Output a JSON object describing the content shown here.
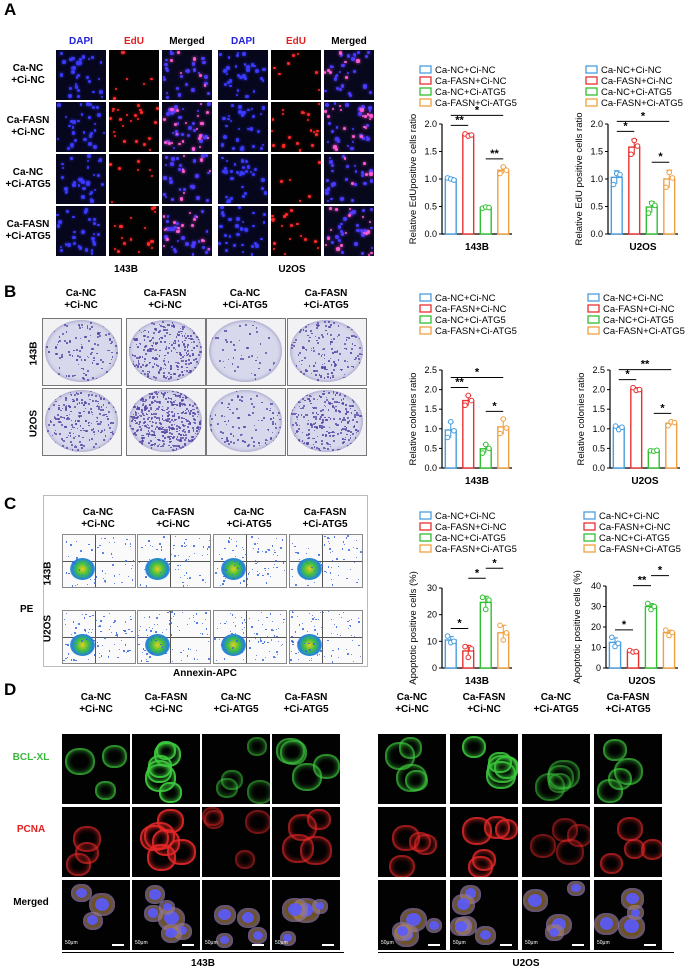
{
  "panels": {
    "A": {
      "letter": "A",
      "stain_headers": [
        "DAPI",
        "EdU",
        "Merged",
        "DAPI",
        "EdU",
        "Merged"
      ],
      "stain_colors": [
        "#2222dd",
        "#e02020",
        "#000000",
        "#2222dd",
        "#e02020",
        "#000000"
      ],
      "rows": [
        "Ca-NC\n+Ci-NC",
        "Ca-FASN\n+Ci-NC",
        "Ca-NC\n+Ci-ATG5",
        "Ca-FASN\n+Ci-ATG5"
      ],
      "cell_lines": [
        "143B",
        "U2OS"
      ]
    },
    "B": {
      "letter": "B",
      "columns": [
        "Ca-NC\n+Ci-NC",
        "Ca-FASN\n+Ci-NC",
        "Ca-NC\n+Ci-ATG5",
        "Ca-FASN\n+Ci-ATG5"
      ],
      "rows": [
        "143B",
        "U2OS"
      ]
    },
    "C": {
      "letter": "C",
      "columns": [
        "Ca-NC\n+Ci-NC",
        "Ca-FASN\n+Ci-NC",
        "Ca-NC\n+Ci-ATG5",
        "Ca-FASN\n+Ci-ATG5"
      ],
      "rows": [
        "143B",
        "U2OS"
      ],
      "y_axis": "PE",
      "x_axis": "Annexin-APC"
    },
    "D": {
      "letter": "D",
      "columns": [
        "Ca-NC\n+Ci-NC",
        "Ca-FASN\n+Ci-NC",
        "Ca-NC\n+Ci-ATG5",
        "Ca-FASN\n+Ci-ATG5"
      ],
      "rows": [
        "BCL-XL",
        "PCNA",
        "Merged"
      ],
      "row_colors": [
        "#3cb83c",
        "#e02020",
        "#000000"
      ],
      "cell_lines": [
        "143B",
        "U2OS"
      ],
      "scale_label": "50μm"
    }
  },
  "colors": {
    "series": [
      "#4a9ee0",
      "#e83030",
      "#30c030",
      "#f0a040"
    ]
  },
  "chart_data": [
    {
      "type": "bar",
      "id": "A1",
      "legend": [
        "Ca-NC+Ci-NC",
        "Ca-FASN+Ci-NC",
        "Ca-NC+Ci-ATG5",
        "Ca-FASN+Ci-ATG5"
      ],
      "categories": [
        "Ca-NC+Ci-NC",
        "Ca-FASN+Ci-NC",
        "Ca-NC+Ci-ATG5",
        "Ca-FASN+Ci-ATG5"
      ],
      "values": [
        1.0,
        1.8,
        0.48,
        1.16
      ],
      "points": [
        [
          1.02,
          1.0,
          0.98
        ],
        [
          1.82,
          1.78,
          1.8
        ],
        [
          0.47,
          0.49,
          0.48
        ],
        [
          1.1,
          1.22,
          1.16
        ]
      ],
      "errors": [
        0.03,
        0.03,
        0.02,
        0.06
      ],
      "ylabel": "Relative EdUpositive cells ratio",
      "xlabel": "143B",
      "ylim": [
        0,
        2.0
      ],
      "yticks": [
        "0.0",
        "0.5",
        "1.0",
        "1.5",
        "2.0"
      ],
      "sig": [
        {
          "a": 0,
          "b": 1,
          "t": "**",
          "lvl": 0
        },
        {
          "a": 0,
          "b": 3,
          "t": "*",
          "lvl": 1
        },
        {
          "a": 2,
          "b": 3,
          "t": "**",
          "lvl": 0
        }
      ]
    },
    {
      "type": "bar",
      "id": "A2",
      "legend": [
        "Ca-NC+Ci-NC",
        "Ca-FASN+Ci-NC",
        "Ca-NC+Ci-ATG5",
        "Ca-FASN+Ci-ATG5"
      ],
      "categories": [
        "Ca-NC+Ci-NC",
        "Ca-FASN+Ci-NC",
        "Ca-NC+Ci-ATG5",
        "Ca-FASN+Ci-ATG5"
      ],
      "values": [
        1.03,
        1.58,
        0.49,
        1.0
      ],
      "points": [
        [
          0.9,
          1.1,
          1.08
        ],
        [
          1.45,
          1.7,
          1.6
        ],
        [
          0.38,
          0.56,
          0.52
        ],
        [
          0.85,
          1.12,
          1.02
        ]
      ],
      "errors": [
        0.12,
        0.14,
        0.1,
        0.16
      ],
      "ylabel": "Relative EdU positive cells ratio",
      "xlabel": "U2OS",
      "ylim": [
        0,
        2.0
      ],
      "yticks": [
        "0.0",
        "0.5",
        "1.0",
        "1.5",
        "2.0"
      ],
      "sig": [
        {
          "a": 0,
          "b": 1,
          "t": "*",
          "lvl": 0
        },
        {
          "a": 0,
          "b": 3,
          "t": "*",
          "lvl": 1
        },
        {
          "a": 2,
          "b": 3,
          "t": "*",
          "lvl": 0
        }
      ]
    },
    {
      "type": "bar",
      "id": "B1",
      "legend": [
        "Ca-NC+Ci-NC",
        "Ca-FASN+Ci-NC",
        "Ca-NC+Ci-ATG5",
        "Ca-FASN+Ci-ATG5"
      ],
      "categories": [
        "Ca-NC+Ci-NC",
        "Ca-FASN+Ci-NC",
        "Ca-NC+Ci-ATG5",
        "Ca-FASN+Ci-ATG5"
      ],
      "values": [
        0.97,
        1.72,
        0.49,
        1.05
      ],
      "points": [
        [
          0.78,
          1.18,
          0.95
        ],
        [
          1.6,
          1.85,
          1.72
        ],
        [
          0.38,
          0.6,
          0.5
        ],
        [
          0.88,
          1.25,
          1.02
        ]
      ],
      "errors": [
        0.2,
        0.13,
        0.11,
        0.19
      ],
      "ylabel": "Relative colonies ratio",
      "xlabel": "143B",
      "ylim": [
        0,
        2.5
      ],
      "yticks": [
        "0.0",
        "0.5",
        "1.0",
        "1.5",
        "2.0",
        "2.5"
      ],
      "sig": [
        {
          "a": 0,
          "b": 1,
          "t": "**",
          "lvl": 0
        },
        {
          "a": 0,
          "b": 3,
          "t": "*",
          "lvl": 1
        },
        {
          "a": 2,
          "b": 3,
          "t": "*",
          "lvl": 0
        }
      ]
    },
    {
      "type": "bar",
      "id": "B2",
      "legend": [
        "Ca-NC+Ci-NC",
        "Ca-FASN+Ci-NC",
        "Ca-NC+Ci-ATG5",
        "Ca-FASN+Ci-ATG5"
      ],
      "categories": [
        "Ca-NC+Ci-NC",
        "Ca-FASN+Ci-NC",
        "Ca-NC+Ci-ATG5",
        "Ca-FASN+Ci-ATG5"
      ],
      "values": [
        1.03,
        2.01,
        0.44,
        1.14
      ],
      "points": [
        [
          1.07,
          0.98,
          1.04
        ],
        [
          2.05,
          1.98,
          2.0
        ],
        [
          0.44,
          0.43,
          0.45
        ],
        [
          1.08,
          1.18,
          1.16
        ]
      ],
      "errors": [
        0.04,
        0.04,
        0.01,
        0.05
      ],
      "ylabel": "Relative colonies ratio",
      "xlabel": "U2OS",
      "ylim": [
        0,
        2.5
      ],
      "yticks": [
        "0.0",
        "0.5",
        "1.0",
        "1.5",
        "2.0",
        "2.5"
      ],
      "sig": [
        {
          "a": 0,
          "b": 1,
          "t": "*",
          "lvl": 0
        },
        {
          "a": 0,
          "b": 3,
          "t": "**",
          "lvl": 1
        },
        {
          "a": 2,
          "b": 3,
          "t": "*",
          "lvl": 0
        }
      ]
    },
    {
      "type": "bar",
      "id": "C1",
      "legend": [
        "Ca-NC+Ci-NC",
        "Ca-FASN+Ci-NC",
        "Ca-NC+Ci-ATG5",
        "Ca-FASN+Ci-ATG5"
      ],
      "categories": [
        "Ca-NC+Ci-NC",
        "Ca-FASN+Ci-NC",
        "Ca-NC+Ci-ATG5",
        "Ca-FASN+Ci-ATG5"
      ],
      "values": [
        10.5,
        6.4,
        24.6,
        13.2
      ],
      "points": [
        [
          12,
          9.5,
          10
        ],
        [
          8,
          4,
          7.2
        ],
        [
          26.5,
          22,
          25.5
        ],
        [
          16,
          10.5,
          13.2
        ]
      ],
      "errors": [
        1.3,
        2.1,
        2.3,
        2.8
      ],
      "ylabel": "Apoptotic positive cells (%)",
      "xlabel": "143B",
      "ylim": [
        0,
        30
      ],
      "yticks": [
        "0",
        "10",
        "20",
        "30"
      ],
      "sig": [
        {
          "a": 0,
          "b": 1,
          "t": "*",
          "lvl": 0
        },
        {
          "a": 1,
          "b": 2,
          "t": "*",
          "lvl": 1
        },
        {
          "a": 2,
          "b": 3,
          "t": "*",
          "lvl": 2
        }
      ]
    },
    {
      "type": "bar",
      "id": "C2",
      "legend": [
        "Ca-NC+Ci-NC",
        "Ca-FASN+Ci-NC",
        "Ca-NC+Ci-ATG5",
        "Ca-FASN+Ci-ATG5"
      ],
      "categories": [
        "Ca-NC+Ci-NC",
        "Ca-FASN+Ci-NC",
        "Ca-NC+Ci-ATG5",
        "Ca-FASN+Ci-ATG5"
      ],
      "values": [
        12.5,
        8.1,
        30.0,
        17.2
      ],
      "points": [
        [
          15,
          10.5,
          12
        ],
        [
          8.5,
          7.8,
          8
        ],
        [
          31.5,
          28.5,
          30
        ],
        [
          18.5,
          15.8,
          17.3
        ]
      ],
      "errors": [
        2.2,
        0.4,
        1.4,
        1.2
      ],
      "ylabel": "Apoptotic positive cells (%)",
      "xlabel": "U2OS",
      "ylim": [
        0,
        40
      ],
      "yticks": [
        "0",
        "10",
        "20",
        "30",
        "40"
      ],
      "sig": [
        {
          "a": 0,
          "b": 1,
          "t": "*",
          "lvl": 0
        },
        {
          "a": 1,
          "b": 2,
          "t": "**",
          "lvl": 1
        },
        {
          "a": 2,
          "b": 3,
          "t": "*",
          "lvl": 2
        }
      ]
    }
  ]
}
